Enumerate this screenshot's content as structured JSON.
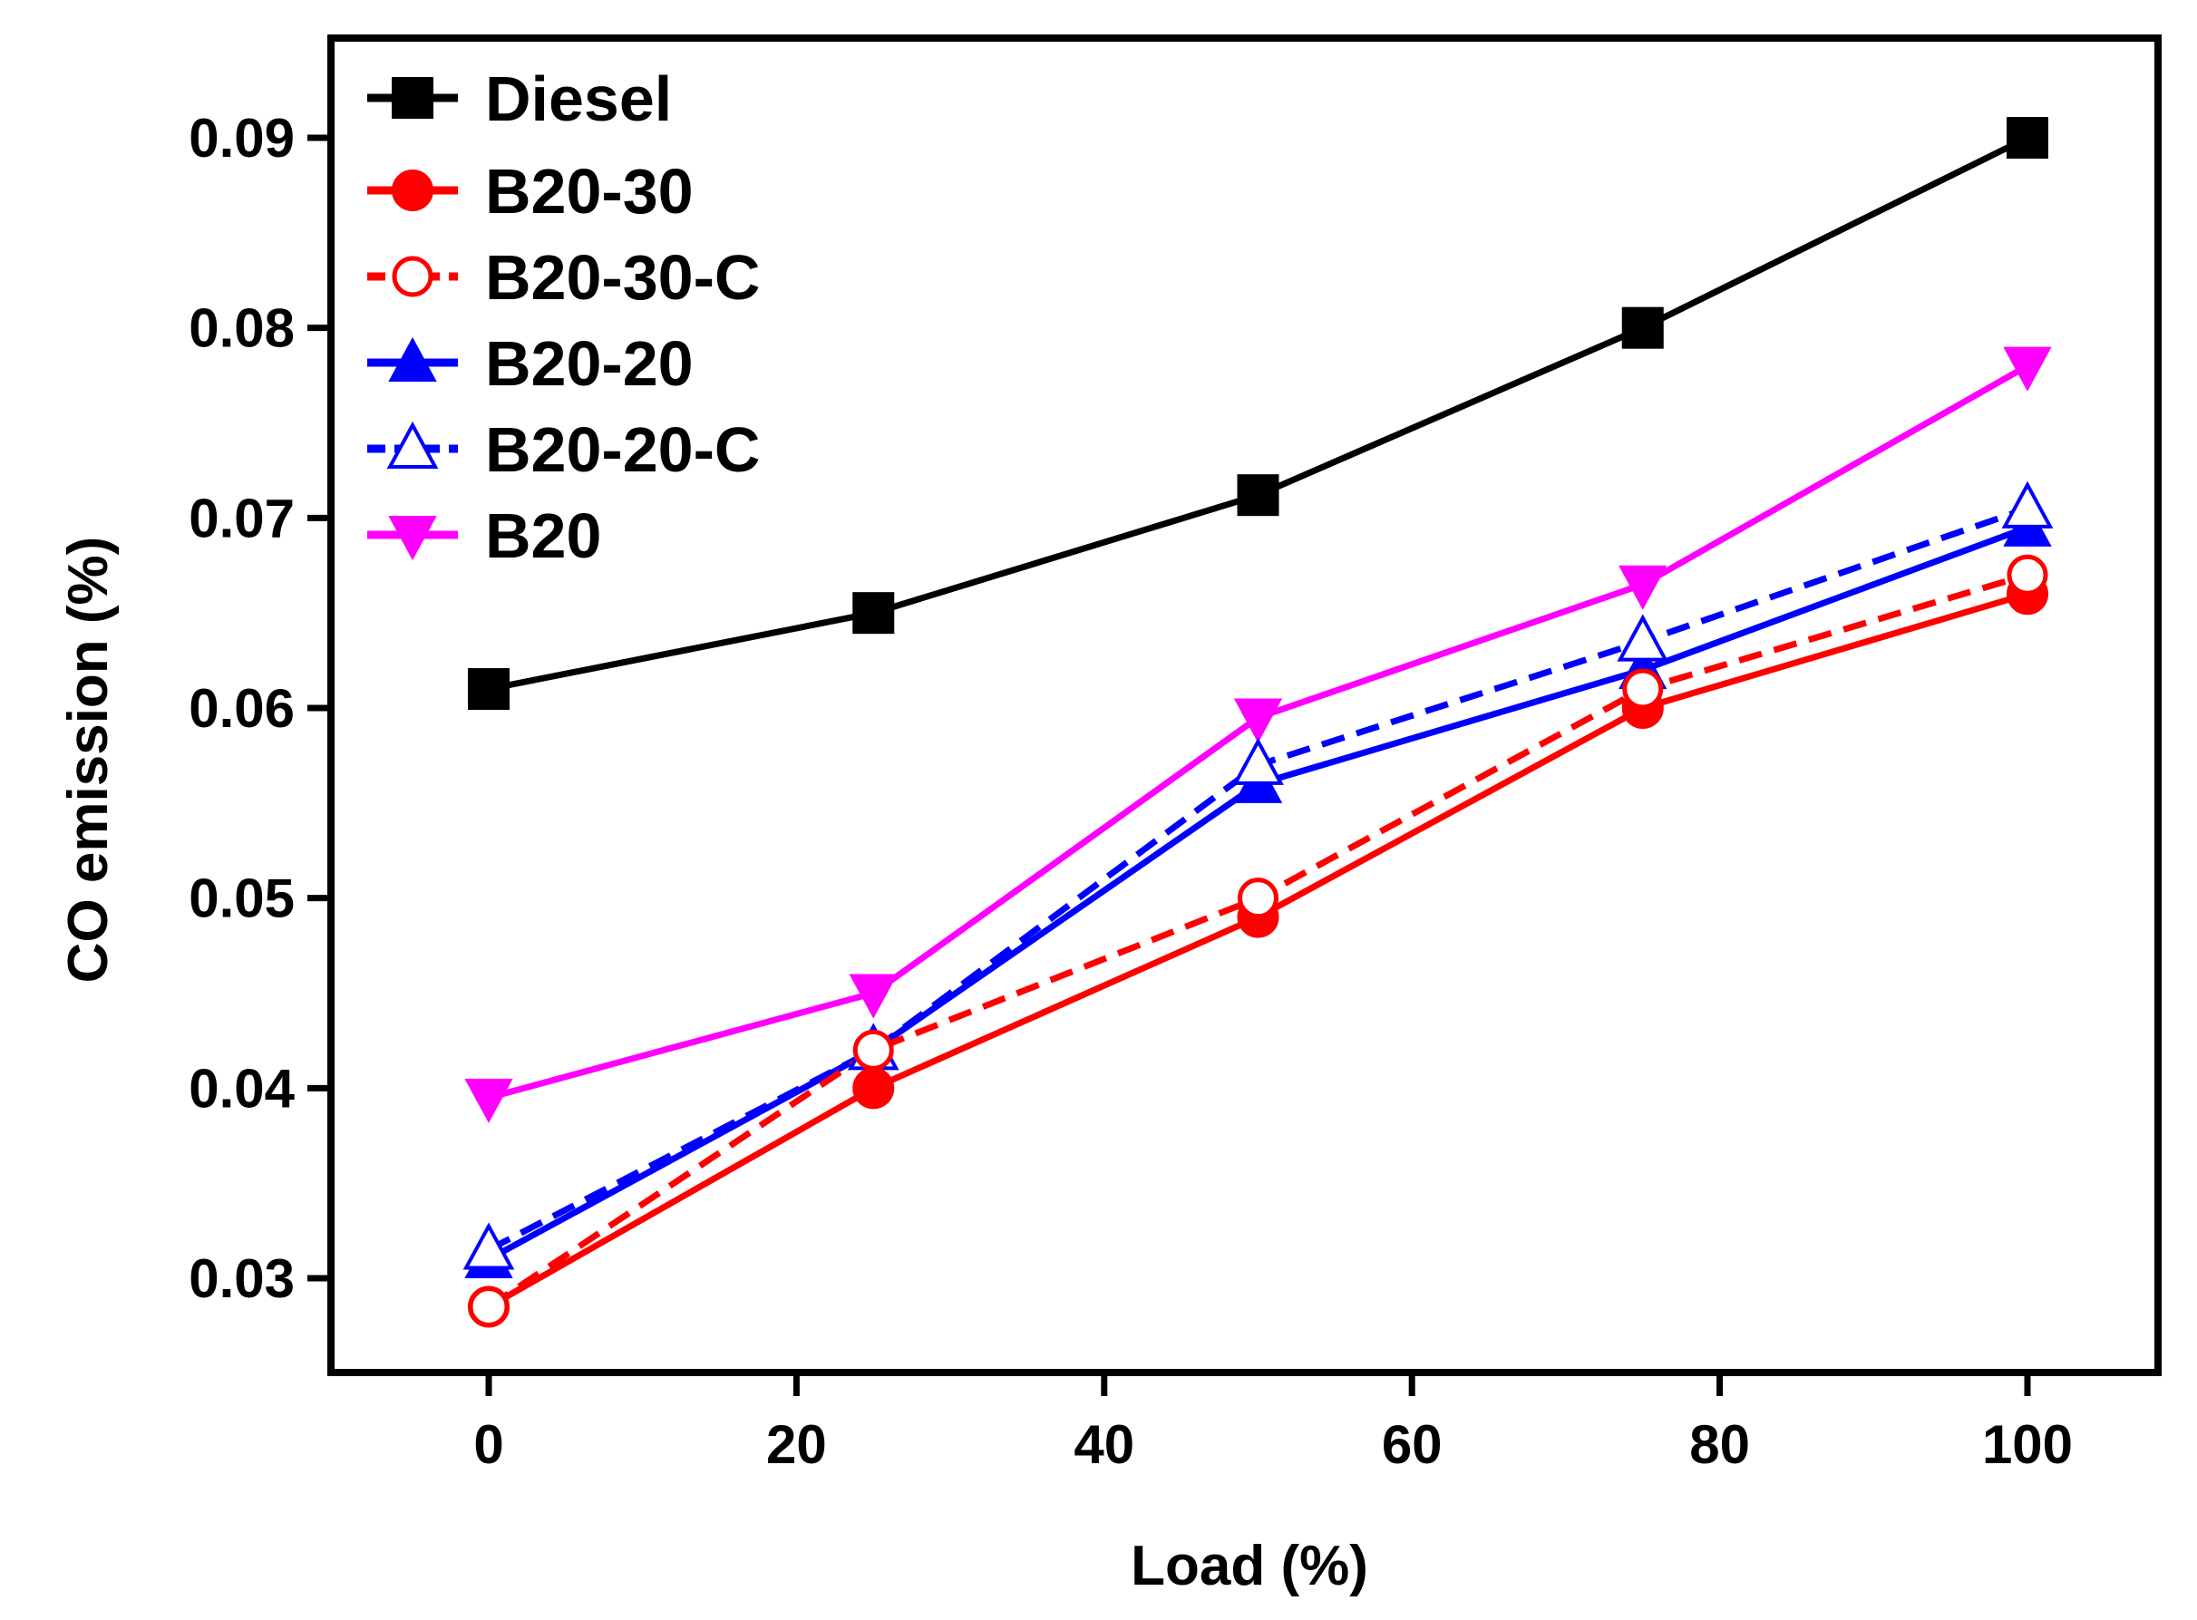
{
  "chart_data": {
    "type": "line",
    "title": "",
    "xlabel": "Load (%)",
    "ylabel": "CO emission (%)",
    "xlim": [
      -10,
      110
    ],
    "ylim": [
      0.025,
      0.095
    ],
    "xticks": [
      0,
      20,
      40,
      60,
      80,
      100
    ],
    "yticks": [
      0.03,
      0.04,
      0.05,
      0.06,
      0.07,
      0.08,
      0.09
    ],
    "xtick_labels": [
      "0",
      "20",
      "40",
      "60",
      "80",
      "100"
    ],
    "ytick_labels": [
      "0.03",
      "0.04",
      "0.05",
      "0.06",
      "0.07",
      "0.08",
      "0.09"
    ],
    "grid": false,
    "legend_position": "top-left",
    "x": [
      0,
      25,
      50,
      75,
      100
    ],
    "series": [
      {
        "name": "Diesel",
        "values": [
          0.061,
          0.065,
          0.0712,
          0.08,
          0.09
        ],
        "color": "#000000",
        "marker": "square-filled",
        "dash": "solid"
      },
      {
        "name": "B20-30",
        "values": [
          0.0285,
          0.04,
          0.049,
          0.06,
          0.066
        ],
        "color": "#ff0000",
        "marker": "circle-filled",
        "dash": "solid"
      },
      {
        "name": "B20-30-C",
        "values": [
          0.0285,
          0.042,
          0.05,
          0.061,
          0.067
        ],
        "color": "#ff0000",
        "marker": "circle-open",
        "dash": "dashed"
      },
      {
        "name": "B20-20",
        "values": [
          0.031,
          0.042,
          0.056,
          0.062,
          0.0695
        ],
        "color": "#0000ff",
        "marker": "triangle-up-filled",
        "dash": "solid"
      },
      {
        "name": "B20-20-C",
        "values": [
          0.0315,
          0.042,
          0.057,
          0.0635,
          0.0705
        ],
        "color": "#0000ff",
        "marker": "triangle-up-open",
        "dash": "dashed"
      },
      {
        "name": "B20",
        "values": [
          0.0395,
          0.045,
          0.0595,
          0.0665,
          0.078
        ],
        "color": "#ff00ff",
        "marker": "triangle-down-filled",
        "dash": "solid"
      }
    ]
  }
}
